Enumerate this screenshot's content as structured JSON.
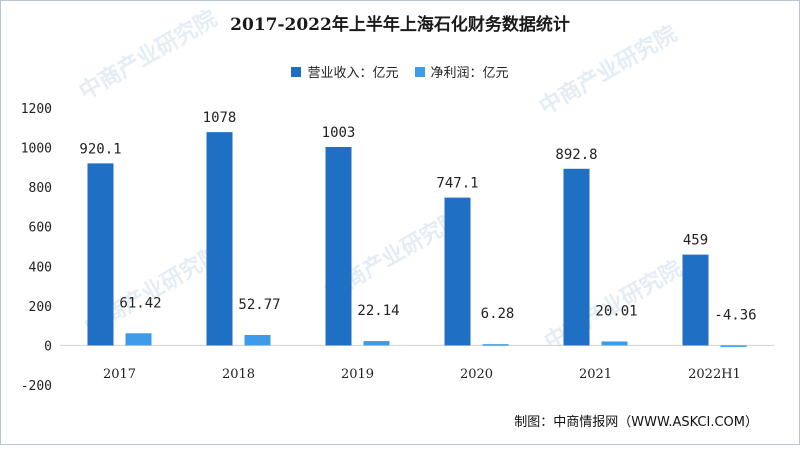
{
  "title": "2017-2022年上半年上海石化财务数据统计",
  "source": "制图：中商情报网（WWW.ASKCI.COM）",
  "watermark": "中商产业研究院",
  "chart_data": {
    "type": "bar",
    "title": "2017-2022年上半年上海石化财务数据统计",
    "categories": [
      "2017",
      "2018",
      "2019",
      "2020",
      "2021",
      "2022H1"
    ],
    "series": [
      {
        "name": "营业收入：亿元",
        "values": [
          920.1,
          1078,
          1003,
          747.1,
          892.8,
          459
        ],
        "labels": [
          "920.1",
          "1078",
          "1003",
          "747.1",
          "892.8",
          "459"
        ],
        "color": "#1f6fc5"
      },
      {
        "name": "净利润：亿元",
        "values": [
          61.42,
          52.77,
          22.14,
          6.28,
          20.01,
          -4.36
        ],
        "labels": [
          "61.42",
          "52.77",
          "22.14",
          "6.28",
          "20.01",
          "-4.36"
        ],
        "color": "#3d9be9"
      }
    ],
    "ylim": [
      -200,
      1200
    ],
    "yticks": [
      "-200",
      "0",
      "200",
      "400",
      "600",
      "800",
      "1000",
      "1200"
    ],
    "grid": false,
    "legend": "top-center"
  }
}
